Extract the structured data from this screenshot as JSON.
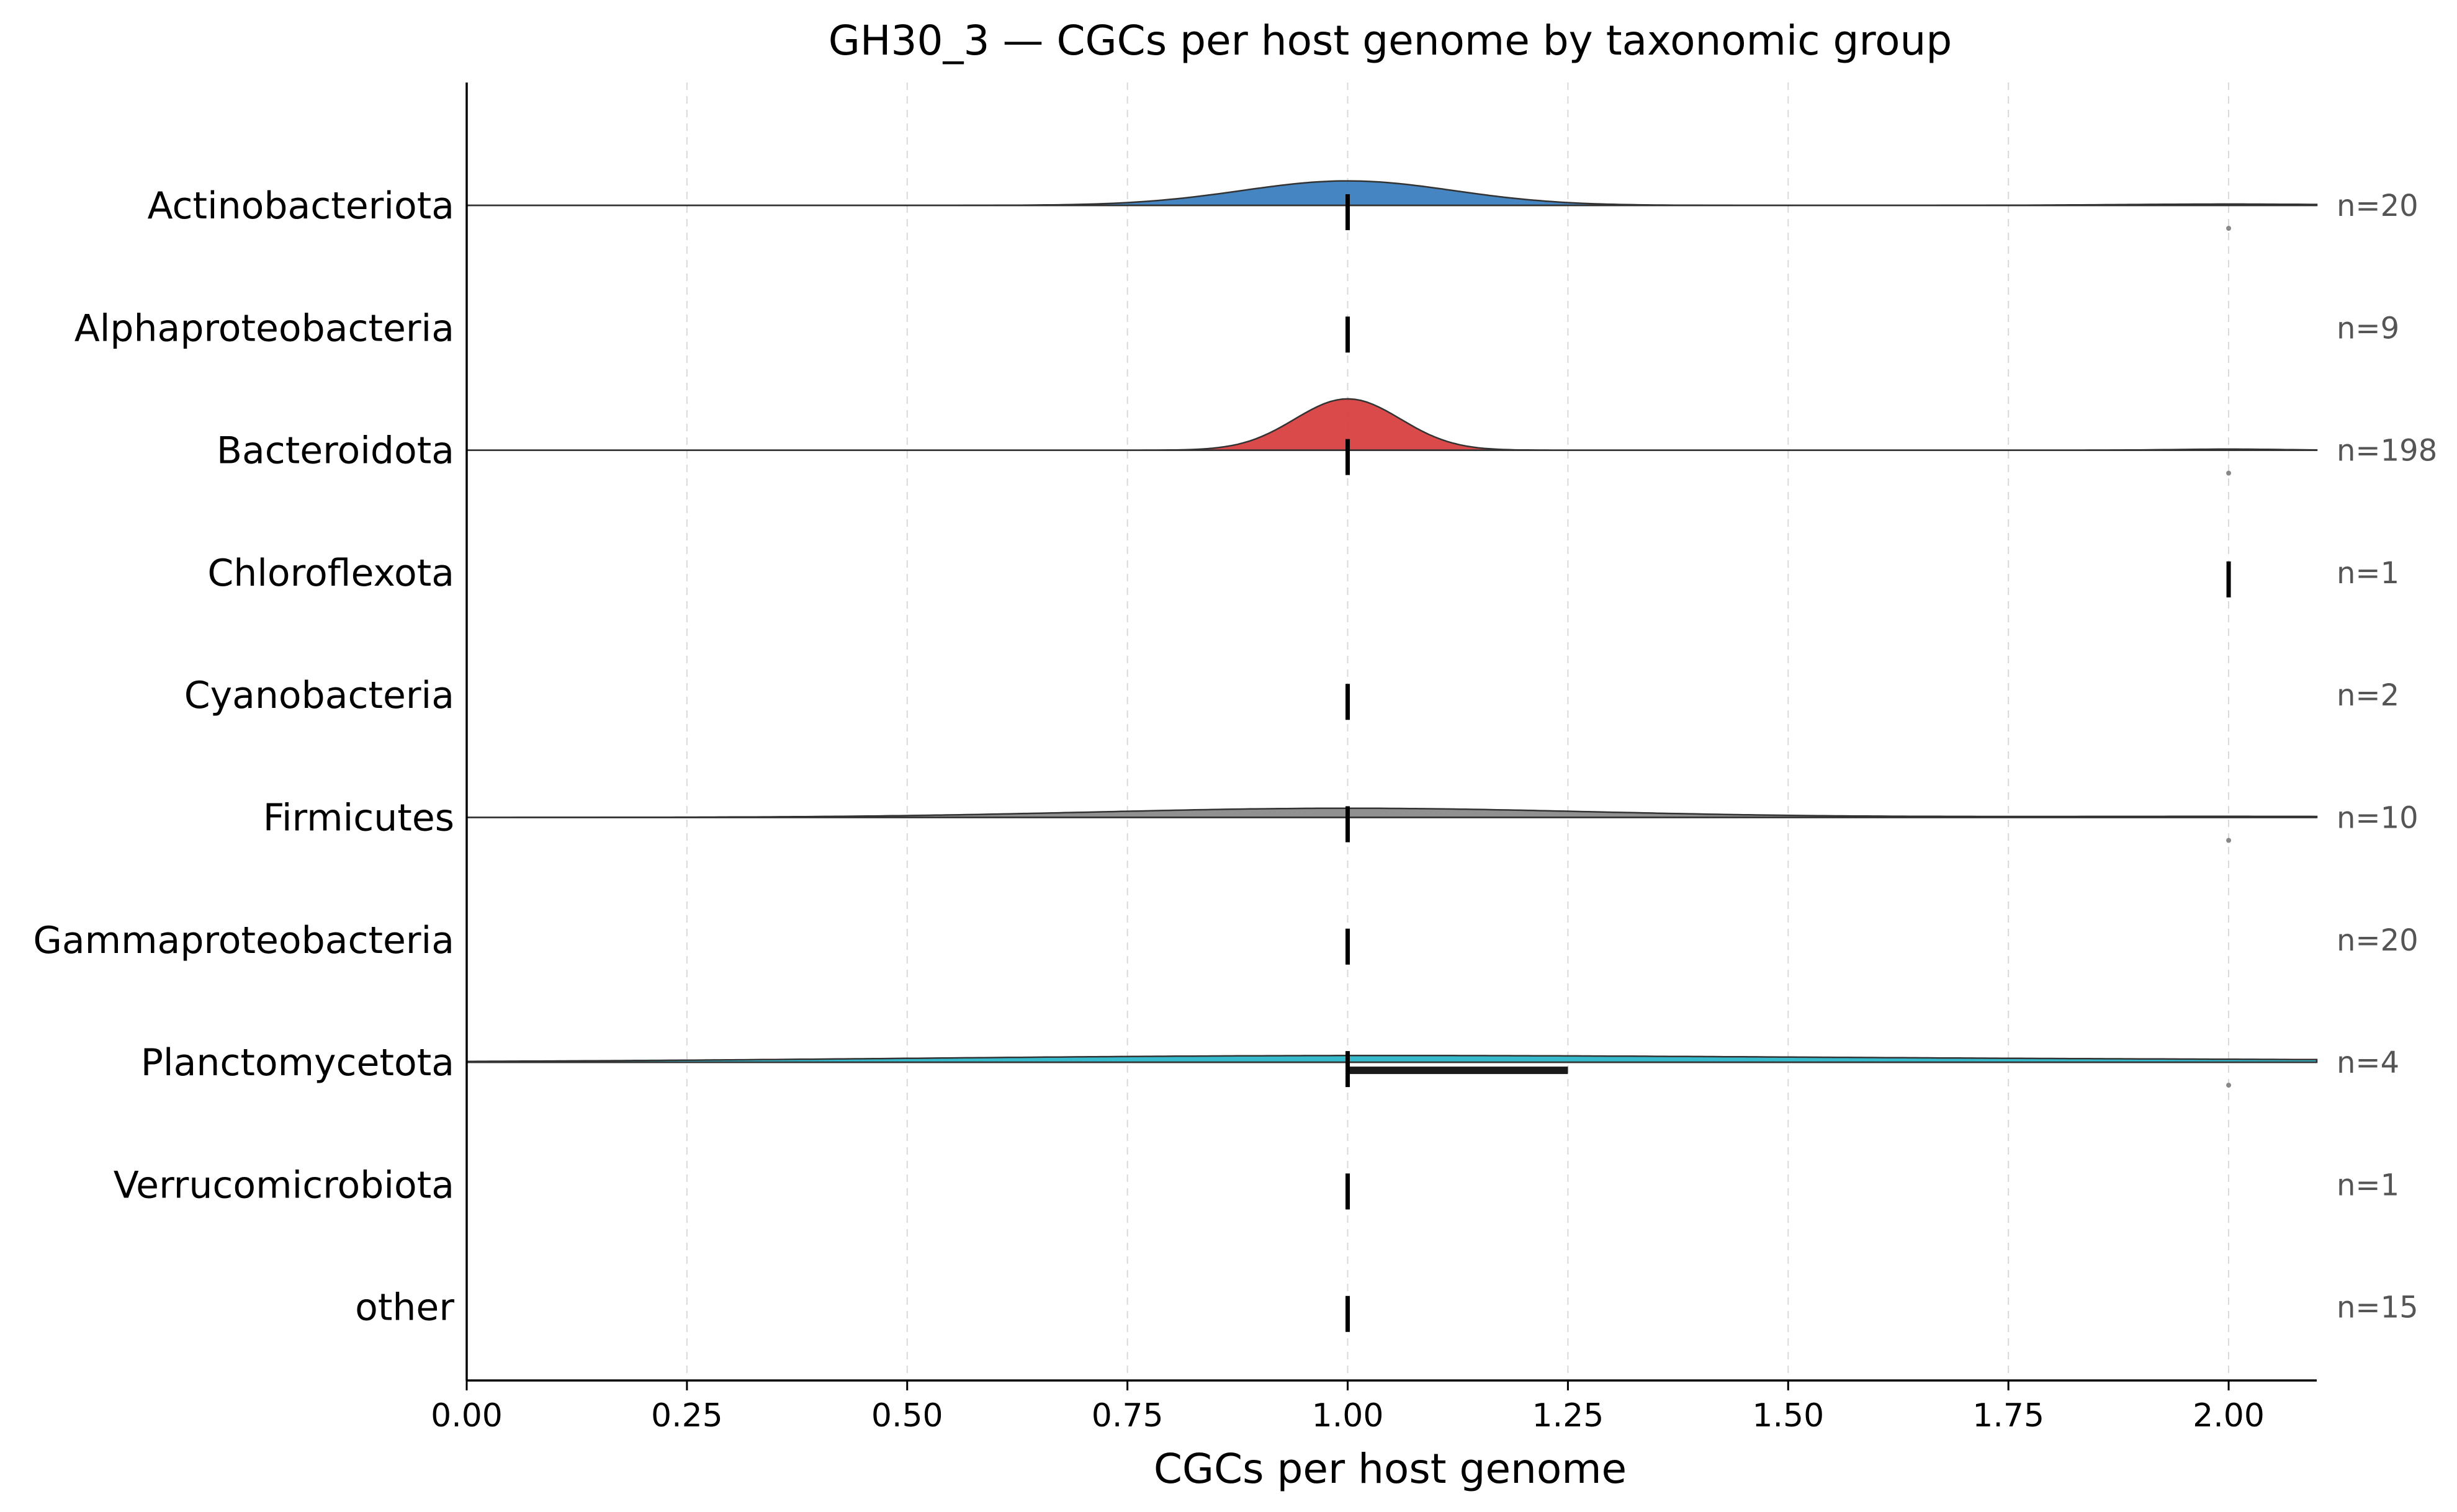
{
  "chart_data": {
    "type": "ridgeline",
    "title": "GH30_3 — CGCs per host genome by taxonomic group",
    "xlabel": "CGCs per host genome",
    "ylabel": "",
    "xlim": [
      0,
      2.1
    ],
    "xticks": [
      "0.00",
      "0.25",
      "0.50",
      "0.75",
      "1.00",
      "1.25",
      "1.50",
      "1.75",
      "2.00"
    ],
    "grid": "vertical dashed",
    "categories": [
      {
        "name": "Actinobacteriota",
        "n_label": "n=20",
        "color": "#3a7ebf",
        "median": 1.0,
        "q1": 1.0,
        "q3": 1.0,
        "outliers": [
          2.0
        ],
        "density": {
          "components": [
            {
              "mean": 1.0,
              "sd": 0.12,
              "weight": 0.95
            },
            {
              "mean": 2.0,
              "sd": 0.12,
              "weight": 0.05
            }
          ],
          "peak_height": 0.2
        }
      },
      {
        "name": "Alphaproteobacteria",
        "n_label": "n=9",
        "color": "#e08c3c",
        "median": 1.0,
        "q1": 1.0,
        "q3": 1.0,
        "outliers": [],
        "density": null
      },
      {
        "name": "Bacteroidota",
        "n_label": "n=198",
        "color": "#d94040",
        "median": 1.0,
        "q1": 1.0,
        "q3": 1.0,
        "outliers": [
          2.0
        ],
        "density": {
          "components": [
            {
              "mean": 1.0,
              "sd": 0.06,
              "weight": 0.98
            },
            {
              "mean": 2.0,
              "sd": 0.06,
              "weight": 0.02
            }
          ],
          "peak_height": 0.42
        }
      },
      {
        "name": "Chloroflexota",
        "n_label": "n=1",
        "color": "#8c5fb5",
        "median": 2.0,
        "q1": 2.0,
        "q3": 2.0,
        "outliers": [],
        "density": null
      },
      {
        "name": "Cyanobacteria",
        "n_label": "n=2",
        "color": "#8b5a3c",
        "median": 1.0,
        "q1": 1.0,
        "q3": 1.0,
        "outliers": [],
        "density": null
      },
      {
        "name": "Firmicutes",
        "n_label": "n=10",
        "color": "#8a8a8a",
        "median": 1.0,
        "q1": 1.0,
        "q3": 1.0,
        "outliers": [
          2.0
        ],
        "density": {
          "components": [
            {
              "mean": 1.0,
              "sd": 0.28,
              "weight": 0.9
            },
            {
              "mean": 2.0,
              "sd": 0.28,
              "weight": 0.1
            }
          ],
          "peak_height": 0.075
        }
      },
      {
        "name": "Gammaproteobacteria",
        "n_label": "n=20",
        "color": "#bcbd22",
        "median": 1.0,
        "q1": 1.0,
        "q3": 1.0,
        "outliers": [],
        "density": null
      },
      {
        "name": "Planctomycetota",
        "n_label": "n=4",
        "color": "#2ab7c9",
        "median": 1.0,
        "q1": 1.0,
        "q3": 1.25,
        "outliers": [
          2.0
        ],
        "density": {
          "components": [
            {
              "mean": 1.0,
              "sd": 0.5,
              "weight": 0.75
            },
            {
              "mean": 2.0,
              "sd": 0.5,
              "weight": 0.25
            }
          ],
          "peak_height": 0.055
        }
      },
      {
        "name": "Verrucomicrobiota",
        "n_label": "n=1",
        "color": "#e377c2",
        "median": 1.0,
        "q1": 1.0,
        "q3": 1.0,
        "outliers": [],
        "density": null
      },
      {
        "name": "other",
        "n_label": "n=15",
        "color": "#7f7f7f",
        "median": 1.0,
        "q1": 1.0,
        "q3": 1.0,
        "outliers": [],
        "density": null
      }
    ]
  }
}
